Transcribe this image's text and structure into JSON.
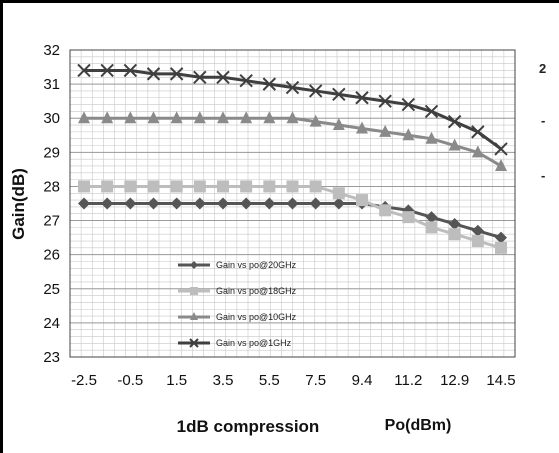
{
  "chart_data": {
    "type": "line",
    "xlabel": "Po(dBm)",
    "ylabel": "Gain(dB)",
    "caption": "1dB compression",
    "ylim": [
      23,
      32
    ],
    "y_ticks": [
      "23",
      "24",
      "25",
      "26",
      "27",
      "28",
      "29",
      "30",
      "31",
      "32"
    ],
    "x_tick_labels": [
      "-2.5",
      "-0.5",
      "1.5",
      "3.5",
      "5.5",
      "7.5",
      "9.4",
      "11.2",
      "12.9",
      "14.5"
    ],
    "x": [
      -2.5,
      -1.5,
      -0.5,
      0.5,
      1.5,
      2.5,
      3.5,
      4.5,
      5.5,
      6.5,
      7.5,
      8.5,
      9.4,
      10.3,
      11.2,
      12.0,
      12.9,
      13.7,
      14.5
    ],
    "grid": true,
    "legend_position": "lower-left",
    "edge_marks": [
      "2",
      "-",
      "-"
    ],
    "series": [
      {
        "name": "Gain vs po@20GHz",
        "marker": "diamond",
        "color": "#555555",
        "values": [
          27.5,
          27.5,
          27.5,
          27.5,
          27.5,
          27.5,
          27.5,
          27.5,
          27.5,
          27.5,
          27.5,
          27.5,
          27.5,
          27.4,
          27.3,
          27.1,
          26.9,
          26.7,
          26.5
        ]
      },
      {
        "name": "Gain vs po@18GHz",
        "marker": "square",
        "color": "#bdbdbd",
        "values": [
          28.0,
          28.0,
          28.0,
          28.0,
          28.0,
          28.0,
          28.0,
          28.0,
          28.0,
          28.0,
          28.0,
          27.8,
          27.6,
          27.3,
          27.1,
          26.8,
          26.6,
          26.4,
          26.2
        ]
      },
      {
        "name": "Gain vs po@10GHz",
        "marker": "triangle",
        "color": "#8a8a8a",
        "values": [
          30.0,
          30.0,
          30.0,
          30.0,
          30.0,
          30.0,
          30.0,
          30.0,
          30.0,
          30.0,
          29.9,
          29.8,
          29.7,
          29.6,
          29.5,
          29.4,
          29.2,
          29.0,
          28.6
        ]
      },
      {
        "name": "Gain vs po@1GHz",
        "marker": "x",
        "color": "#3f3f3f",
        "values": [
          31.4,
          31.4,
          31.4,
          31.3,
          31.3,
          31.2,
          31.2,
          31.1,
          31.0,
          30.9,
          30.8,
          30.7,
          30.6,
          30.5,
          30.4,
          30.2,
          29.9,
          29.6,
          29.1
        ]
      }
    ]
  }
}
